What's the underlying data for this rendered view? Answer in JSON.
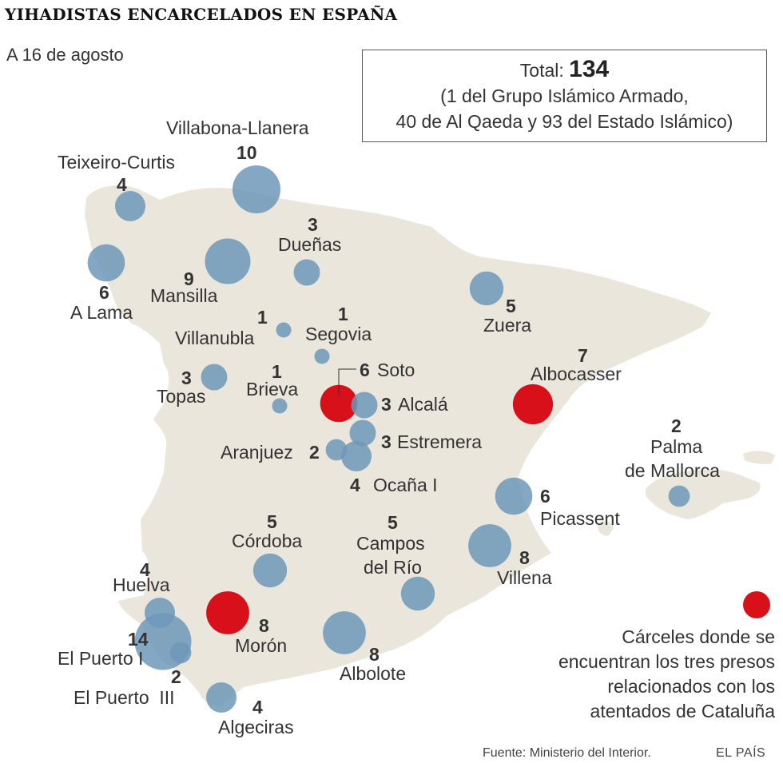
{
  "title": "YIHADISTAS ENCARCELADOS EN ESPAÑA",
  "subtitle": "A 16 de agosto",
  "total": {
    "label": "Total:",
    "value": "134",
    "line2": "(1 del Grupo Islámico Armado,",
    "line3": "40 de Al Qaeda y 93 del Estado Islámico)"
  },
  "colors": {
    "land": "#ebe6dc",
    "bubble": "#6f98b9",
    "highlight": "#d8101a",
    "text": "#333333"
  },
  "prisons": [
    {
      "name": "Villabona-Llanera",
      "count": "10",
      "inmates": 10,
      "highlight": false
    },
    {
      "name": "Teixeiro-Curtis",
      "count": "4",
      "inmates": 4,
      "highlight": false
    },
    {
      "name": "A Lama",
      "count": "6",
      "inmates": 6,
      "highlight": false
    },
    {
      "name": "Mansilla",
      "count": "9",
      "inmates": 9,
      "highlight": false
    },
    {
      "name": "Dueñas",
      "count": "3",
      "inmates": 3,
      "highlight": false
    },
    {
      "name": "Villanubla",
      "count": "1",
      "inmates": 1,
      "highlight": false
    },
    {
      "name": "Segovia",
      "count": "1",
      "inmates": 1,
      "highlight": false
    },
    {
      "name": "Zuera",
      "count": "5",
      "inmates": 5,
      "highlight": false
    },
    {
      "name": "Topas",
      "count": "3",
      "inmates": 3,
      "highlight": false
    },
    {
      "name": "Brieva",
      "count": "1",
      "inmates": 1,
      "highlight": false
    },
    {
      "name": "Soto",
      "count": "6",
      "inmates": 6,
      "highlight": true
    },
    {
      "name": "Alcalá",
      "count": "3",
      "inmates": 3,
      "highlight": false
    },
    {
      "name": "Albocasser",
      "count": "7",
      "inmates": 7,
      "highlight": true
    },
    {
      "name": "Estremera",
      "count": "3",
      "inmates": 3,
      "highlight": false
    },
    {
      "name": "Aranjuez",
      "count": "2",
      "inmates": 2,
      "highlight": false
    },
    {
      "name": "Ocaña I",
      "count": "4",
      "inmates": 4,
      "highlight": false
    },
    {
      "name": "Palma de Mallorca",
      "name_line1": "Palma",
      "name_line2": "de Mallorca",
      "count": "2",
      "inmates": 2,
      "highlight": false
    },
    {
      "name": "Picassent",
      "count": "6",
      "inmates": 6,
      "highlight": false
    },
    {
      "name": "Córdoba",
      "count": "5",
      "inmates": 5,
      "highlight": false
    },
    {
      "name": "Campos del Río",
      "name_line1": "Campos",
      "name_line2": "del Río",
      "count": "5",
      "inmates": 5,
      "highlight": false
    },
    {
      "name": "Villena",
      "count": "8",
      "inmates": 8,
      "highlight": false
    },
    {
      "name": "Huelva",
      "count": "4",
      "inmates": 4,
      "highlight": false
    },
    {
      "name": "Morón",
      "count": "8",
      "inmates": 8,
      "highlight": true
    },
    {
      "name": "El Puerto I",
      "count": "14",
      "inmates": 14,
      "highlight": false
    },
    {
      "name": "El Puerto  III",
      "count": "2",
      "inmates": 2,
      "highlight": false
    },
    {
      "name": "Albolote",
      "count": "8",
      "inmates": 8,
      "highlight": false
    },
    {
      "name": "Algeciras",
      "count": "4",
      "inmates": 4,
      "highlight": false
    }
  ],
  "legend": {
    "line1": "Cárceles donde se",
    "line2": "encuentran los tres presos",
    "line3": "relacionados con los",
    "line4": "atentados de Cataluña"
  },
  "source": "Fuente: Ministerio del Interior.",
  "brand": "EL PAÍS"
}
